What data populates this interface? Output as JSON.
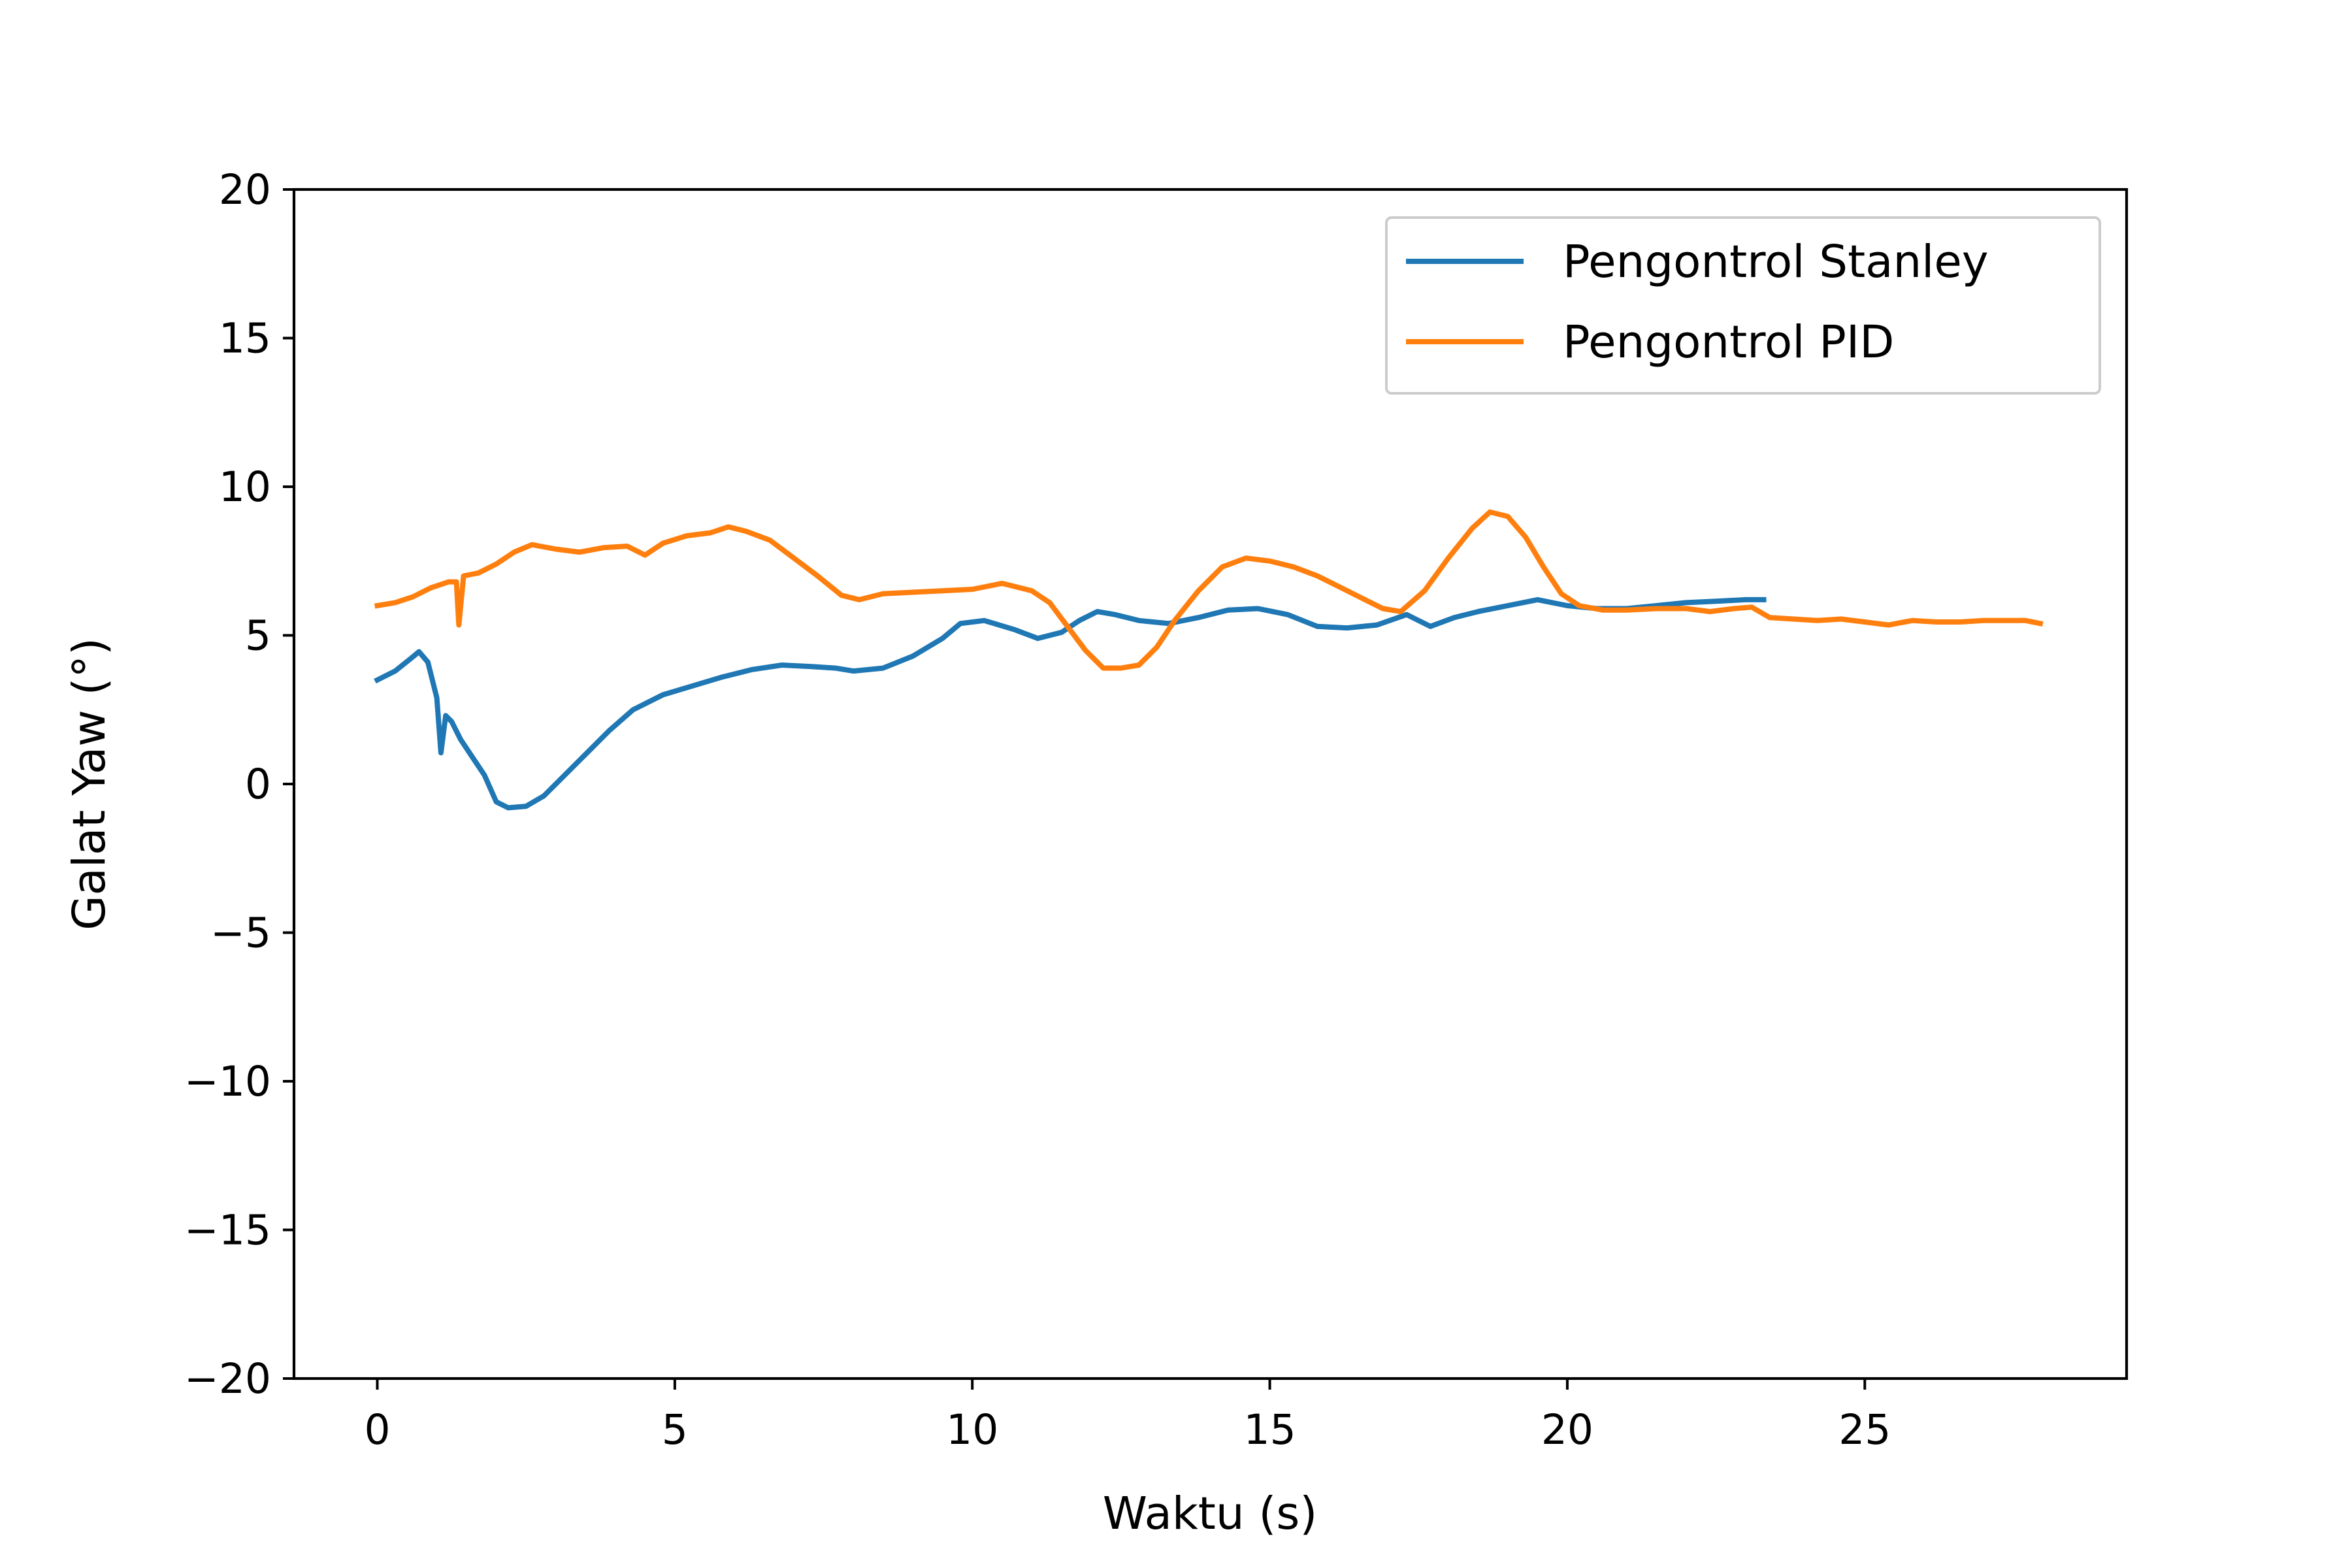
{
  "chart_data": {
    "type": "line",
    "title": "",
    "xlabel": "Waktu (s)",
    "ylabel": "Galat Yaw (°)",
    "xlim": [
      -1.4,
      29.4
    ],
    "ylim": [
      -20,
      20
    ],
    "x_ticks": [
      0,
      5,
      10,
      15,
      20,
      25
    ],
    "y_ticks": [
      -20,
      -15,
      -10,
      -5,
      0,
      5,
      10,
      15,
      20
    ],
    "x_tick_labels": [
      "0",
      "5",
      "10",
      "15",
      "20",
      "25"
    ],
    "y_tick_labels": [
      "−20",
      "−15",
      "−10",
      "−5",
      "0",
      "5",
      "10",
      "15",
      "20"
    ],
    "grid": false,
    "legend_position": "top-right",
    "series": [
      {
        "name": "Pengontrol Stanley",
        "color": "#1f77b4",
        "points": [
          [
            0,
            3.5
          ],
          [
            0.3,
            3.8
          ],
          [
            0.55,
            4.2
          ],
          [
            0.7,
            4.45
          ],
          [
            0.85,
            4.1
          ],
          [
            1.0,
            2.9
          ],
          [
            1.07,
            1.05
          ],
          [
            1.15,
            2.3
          ],
          [
            1.25,
            2.1
          ],
          [
            1.4,
            1.5
          ],
          [
            1.6,
            0.9
          ],
          [
            1.8,
            0.3
          ],
          [
            2.0,
            -0.6
          ],
          [
            2.2,
            -0.8
          ],
          [
            2.5,
            -0.75
          ],
          [
            2.8,
            -0.4
          ],
          [
            3.1,
            0.2
          ],
          [
            3.5,
            1.0
          ],
          [
            3.9,
            1.8
          ],
          [
            4.3,
            2.5
          ],
          [
            4.8,
            3.0
          ],
          [
            5.3,
            3.3
          ],
          [
            5.8,
            3.6
          ],
          [
            6.3,
            3.85
          ],
          [
            6.8,
            4.0
          ],
          [
            7.3,
            3.95
          ],
          [
            7.7,
            3.9
          ],
          [
            8.0,
            3.8
          ],
          [
            8.5,
            3.9
          ],
          [
            9.0,
            4.3
          ],
          [
            9.5,
            4.9
          ],
          [
            9.8,
            5.4
          ],
          [
            10.2,
            5.5
          ],
          [
            10.7,
            5.2
          ],
          [
            11.1,
            4.9
          ],
          [
            11.5,
            5.1
          ],
          [
            11.8,
            5.5
          ],
          [
            12.1,
            5.8
          ],
          [
            12.4,
            5.7
          ],
          [
            12.8,
            5.5
          ],
          [
            13.3,
            5.4
          ],
          [
            13.8,
            5.6
          ],
          [
            14.3,
            5.85
          ],
          [
            14.8,
            5.9
          ],
          [
            15.3,
            5.7
          ],
          [
            15.8,
            5.3
          ],
          [
            16.3,
            5.25
          ],
          [
            16.8,
            5.35
          ],
          [
            17.3,
            5.7
          ],
          [
            17.5,
            5.5
          ],
          [
            17.7,
            5.3
          ],
          [
            18.1,
            5.6
          ],
          [
            18.5,
            5.8
          ],
          [
            19.0,
            6.0
          ],
          [
            19.5,
            6.2
          ],
          [
            20.0,
            6.0
          ],
          [
            20.5,
            5.9
          ],
          [
            21.0,
            5.9
          ],
          [
            21.5,
            6.0
          ],
          [
            22.0,
            6.1
          ],
          [
            22.5,
            6.15
          ],
          [
            23.0,
            6.2
          ],
          [
            23.3,
            6.2
          ]
        ]
      },
      {
        "name": "Pengontrol PID",
        "color": "#ff7f0e",
        "points": [
          [
            0,
            6.0
          ],
          [
            0.3,
            6.1
          ],
          [
            0.6,
            6.3
          ],
          [
            0.9,
            6.6
          ],
          [
            1.2,
            6.8
          ],
          [
            1.33,
            6.8
          ],
          [
            1.37,
            5.35
          ],
          [
            1.45,
            7.0
          ],
          [
            1.7,
            7.1
          ],
          [
            2.0,
            7.4
          ],
          [
            2.3,
            7.8
          ],
          [
            2.6,
            8.05
          ],
          [
            3.0,
            7.9
          ],
          [
            3.4,
            7.8
          ],
          [
            3.8,
            7.95
          ],
          [
            4.2,
            8.0
          ],
          [
            4.5,
            7.7
          ],
          [
            4.8,
            8.1
          ],
          [
            5.2,
            8.35
          ],
          [
            5.6,
            8.45
          ],
          [
            5.9,
            8.65
          ],
          [
            6.2,
            8.5
          ],
          [
            6.6,
            8.2
          ],
          [
            7.0,
            7.6
          ],
          [
            7.4,
            7.0
          ],
          [
            7.8,
            6.35
          ],
          [
            8.1,
            6.2
          ],
          [
            8.5,
            6.4
          ],
          [
            9.0,
            6.45
          ],
          [
            9.5,
            6.5
          ],
          [
            10.0,
            6.55
          ],
          [
            10.5,
            6.75
          ],
          [
            11.0,
            6.5
          ],
          [
            11.3,
            6.1
          ],
          [
            11.6,
            5.3
          ],
          [
            11.9,
            4.5
          ],
          [
            12.2,
            3.9
          ],
          [
            12.5,
            3.9
          ],
          [
            12.8,
            4.0
          ],
          [
            13.1,
            4.6
          ],
          [
            13.4,
            5.5
          ],
          [
            13.8,
            6.5
          ],
          [
            14.2,
            7.3
          ],
          [
            14.6,
            7.6
          ],
          [
            15.0,
            7.5
          ],
          [
            15.4,
            7.3
          ],
          [
            15.8,
            7.0
          ],
          [
            16.2,
            6.6
          ],
          [
            16.6,
            6.2
          ],
          [
            16.9,
            5.9
          ],
          [
            17.2,
            5.8
          ],
          [
            17.6,
            6.5
          ],
          [
            18.0,
            7.6
          ],
          [
            18.4,
            8.6
          ],
          [
            18.7,
            9.15
          ],
          [
            19.0,
            9.0
          ],
          [
            19.3,
            8.3
          ],
          [
            19.6,
            7.3
          ],
          [
            19.9,
            6.4
          ],
          [
            20.2,
            6.0
          ],
          [
            20.6,
            5.85
          ],
          [
            21.0,
            5.85
          ],
          [
            21.5,
            5.9
          ],
          [
            22.0,
            5.9
          ],
          [
            22.4,
            5.8
          ],
          [
            22.8,
            5.9
          ],
          [
            23.1,
            5.95
          ],
          [
            23.4,
            5.6
          ],
          [
            23.8,
            5.55
          ],
          [
            24.2,
            5.5
          ],
          [
            24.6,
            5.55
          ],
          [
            25.0,
            5.45
          ],
          [
            25.4,
            5.35
          ],
          [
            25.8,
            5.5
          ],
          [
            26.2,
            5.45
          ],
          [
            26.6,
            5.45
          ],
          [
            27.0,
            5.5
          ],
          [
            27.4,
            5.5
          ],
          [
            27.7,
            5.5
          ],
          [
            27.95,
            5.4
          ]
        ]
      }
    ]
  }
}
